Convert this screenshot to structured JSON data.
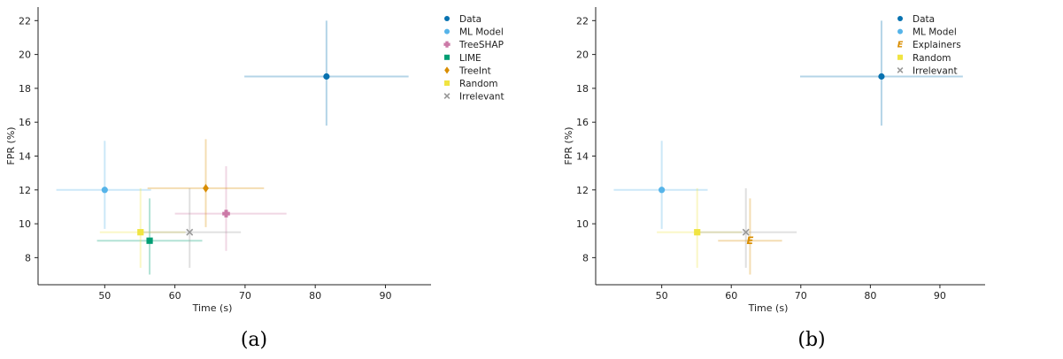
{
  "chart_data": [
    {
      "type": "scatter",
      "panel_label": "(a)",
      "xlabel": "Time (s)",
      "ylabel": "FPR (%)",
      "xlim": [
        40.5,
        96.5
      ],
      "ylim": [
        6.4,
        22.8
      ],
      "xticks": [
        50,
        60,
        70,
        80,
        90
      ],
      "yticks": [
        8,
        10,
        12,
        14,
        16,
        18,
        20,
        22
      ],
      "legend_position": "top-right",
      "grid": false,
      "series": [
        {
          "name": "Data",
          "color": "#0872b0",
          "marker": "circle",
          "x": 81.6,
          "y": 18.7,
          "xerr": [
            11.7,
            11.7
          ],
          "yerr": [
            2.9,
            3.3
          ]
        },
        {
          "name": "ML Model",
          "color": "#56b4e9",
          "marker": "circle",
          "x": 50.0,
          "y": 12.0,
          "xerr": [
            6.9,
            6.6
          ],
          "yerr": [
            2.3,
            2.9
          ]
        },
        {
          "name": "TreeSHAP",
          "color": "#cc79a7",
          "marker": "plus",
          "x": 67.3,
          "y": 10.6,
          "xerr": [
            7.3,
            8.6
          ],
          "yerr": [
            2.2,
            2.8
          ]
        },
        {
          "name": "LIME",
          "color": "#009e73",
          "marker": "square",
          "x": 56.4,
          "y": 9.0,
          "xerr": [
            7.5,
            7.5
          ],
          "yerr": [
            2.0,
            2.5
          ]
        },
        {
          "name": "TreeInt",
          "color": "#d98d00",
          "marker": "diamond",
          "x": 64.4,
          "y": 12.1,
          "xerr": [
            8.3,
            8.3
          ],
          "yerr": [
            2.3,
            2.9
          ]
        },
        {
          "name": "Random",
          "color": "#f0e442",
          "marker": "square",
          "x": 55.1,
          "y": 9.5,
          "xerr": [
            5.8,
            6.4
          ],
          "yerr": [
            2.1,
            2.6
          ]
        },
        {
          "name": "Irrelevant",
          "color": "#999999",
          "marker": "x",
          "x": 62.1,
          "y": 9.5,
          "xerr": [
            7.3,
            7.3
          ],
          "yerr": [
            2.1,
            2.6
          ]
        }
      ]
    },
    {
      "type": "scatter",
      "panel_label": "(b)",
      "xlabel": "Time (s)",
      "ylabel": "FPR (%)",
      "xlim": [
        40.5,
        96.5
      ],
      "ylim": [
        6.4,
        22.8
      ],
      "xticks": [
        50,
        60,
        70,
        80,
        90
      ],
      "yticks": [
        8,
        10,
        12,
        14,
        16,
        18,
        20,
        22
      ],
      "legend_position": "top-right",
      "grid": false,
      "series": [
        {
          "name": "Data",
          "color": "#0872b0",
          "marker": "circle",
          "x": 81.6,
          "y": 18.7,
          "xerr": [
            11.7,
            11.7
          ],
          "yerr": [
            2.9,
            3.3
          ]
        },
        {
          "name": "ML Model",
          "color": "#56b4e9",
          "marker": "circle",
          "x": 50.0,
          "y": 12.0,
          "xerr": [
            6.9,
            6.6
          ],
          "yerr": [
            2.3,
            2.9
          ]
        },
        {
          "name": "Explainers",
          "color": "#d98d00",
          "marker": "E",
          "x": 62.7,
          "y": 9.0,
          "xerr": [
            4.6,
            4.6
          ],
          "yerr": [
            2.0,
            2.5
          ]
        },
        {
          "name": "Random",
          "color": "#f0e442",
          "marker": "square",
          "x": 55.1,
          "y": 9.5,
          "xerr": [
            5.8,
            6.4
          ],
          "yerr": [
            2.1,
            2.6
          ]
        },
        {
          "name": "Irrelevant",
          "color": "#999999",
          "marker": "x",
          "x": 62.1,
          "y": 9.5,
          "xerr": [
            7.3,
            7.3
          ],
          "yerr": [
            2.1,
            2.6
          ]
        }
      ]
    }
  ]
}
